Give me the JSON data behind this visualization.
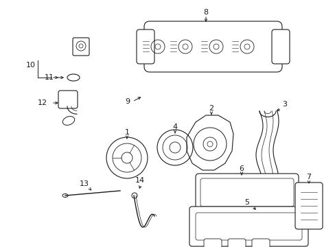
{
  "bg_color": "#ffffff",
  "line_color": "#1a1a1a",
  "lw": 0.8,
  "fig_width": 4.89,
  "fig_height": 3.6,
  "dpi": 100
}
